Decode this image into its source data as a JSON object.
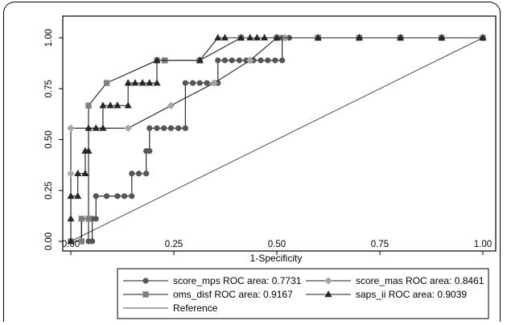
{
  "chart_data": {
    "type": "line",
    "xlabel": "1-Specificity",
    "ylabel": "",
    "xlim": [
      0,
      1
    ],
    "ylim": [
      0,
      1
    ],
    "xticks": [
      "0.00",
      "0.25",
      "0.50",
      "0.75",
      "1.00"
    ],
    "yticks": [
      "0.00",
      "0.25",
      "0.50",
      "0.75",
      "1.00"
    ],
    "grid": "none",
    "legend_position": "bottom",
    "series": [
      {
        "name": "score_mps ROC area: 0.7731",
        "color": "#555555",
        "marker": "circle",
        "points": [
          [
            0,
            0
          ],
          [
            0.026,
            0
          ],
          [
            0.026,
            0.111
          ],
          [
            0.043,
            0.111
          ],
          [
            0.043,
            0
          ],
          [
            0.052,
            0
          ],
          [
            0.052,
            0.111
          ],
          [
            0.061,
            0.111
          ],
          [
            0.061,
            0.222
          ],
          [
            0.087,
            0.222
          ],
          [
            0.113,
            0.222
          ],
          [
            0.13,
            0.222
          ],
          [
            0.148,
            0.222
          ],
          [
            0.148,
            0.333
          ],
          [
            0.165,
            0.333
          ],
          [
            0.183,
            0.333
          ],
          [
            0.183,
            0.444
          ],
          [
            0.191,
            0.444
          ],
          [
            0.191,
            0.556
          ],
          [
            0.209,
            0.556
          ],
          [
            0.226,
            0.556
          ],
          [
            0.243,
            0.556
          ],
          [
            0.261,
            0.556
          ],
          [
            0.278,
            0.556
          ],
          [
            0.278,
            0.778
          ],
          [
            0.296,
            0.778
          ],
          [
            0.313,
            0.778
          ],
          [
            0.33,
            0.778
          ],
          [
            0.348,
            0.778
          ],
          [
            0.357,
            0.778
          ],
          [
            0.357,
            0.889
          ],
          [
            0.374,
            0.889
          ],
          [
            0.391,
            0.889
          ],
          [
            0.409,
            0.889
          ],
          [
            0.426,
            0.889
          ],
          [
            0.443,
            0.889
          ],
          [
            0.461,
            0.889
          ],
          [
            0.478,
            0.889
          ],
          [
            0.496,
            0.889
          ],
          [
            0.513,
            0.889
          ],
          [
            0.513,
            1
          ],
          [
            0.53,
            1
          ],
          [
            0.6,
            1
          ],
          [
            0.7,
            1
          ],
          [
            0.8,
            1
          ],
          [
            0.9,
            1
          ],
          [
            1,
            1
          ]
        ]
      },
      {
        "name": "score_mas ROC area: 0.8461",
        "color": "#a6a6a6",
        "marker": "diamond",
        "points": [
          [
            0,
            0
          ],
          [
            0,
            0.333
          ],
          [
            0,
            0.556
          ],
          [
            0.139,
            0.556
          ],
          [
            0.243,
            0.667
          ],
          [
            0.348,
            0.778
          ],
          [
            0.435,
            0.889
          ],
          [
            0.5,
            1
          ],
          [
            0.52,
            1
          ],
          [
            0.6,
            1
          ],
          [
            0.7,
            1
          ],
          [
            0.8,
            1
          ],
          [
            0.9,
            1
          ],
          [
            1,
            1
          ]
        ]
      },
      {
        "name": "oms_disf ROC area: 0.9167",
        "color": "#7f7f7f",
        "marker": "square",
        "points": [
          [
            0,
            0
          ],
          [
            0.026,
            0
          ],
          [
            0.026,
            0.111
          ],
          [
            0.043,
            0.111
          ],
          [
            0.043,
            0.667
          ],
          [
            0.087,
            0.778
          ],
          [
            0.209,
            0.889
          ],
          [
            0.228,
            0.889
          ],
          [
            0.313,
            0.889
          ],
          [
            0.413,
            1
          ],
          [
            0.5,
            1
          ],
          [
            0.6,
            1
          ],
          [
            0.7,
            1
          ],
          [
            0.8,
            1
          ],
          [
            0.9,
            1
          ],
          [
            1,
            1
          ]
        ]
      },
      {
        "name": "saps_ii ROC area: 0.9039",
        "color": "#262626",
        "marker": "triangle",
        "points": [
          [
            0,
            0
          ],
          [
            0,
            0.111
          ],
          [
            0,
            0.222
          ],
          [
            0.017,
            0.222
          ],
          [
            0.017,
            0.333
          ],
          [
            0.035,
            0.333
          ],
          [
            0.035,
            0.444
          ],
          [
            0.043,
            0.444
          ],
          [
            0.043,
            0.556
          ],
          [
            0.061,
            0.556
          ],
          [
            0.078,
            0.556
          ],
          [
            0.078,
            0.667
          ],
          [
            0.096,
            0.667
          ],
          [
            0.113,
            0.667
          ],
          [
            0.113,
            0.667
          ],
          [
            0.139,
            0.667
          ],
          [
            0.139,
            0.778
          ],
          [
            0.156,
            0.778
          ],
          [
            0.174,
            0.778
          ],
          [
            0.191,
            0.778
          ],
          [
            0.209,
            0.778
          ],
          [
            0.209,
            0.889
          ],
          [
            0.313,
            0.889
          ],
          [
            0.357,
            1
          ],
          [
            0.374,
            1
          ],
          [
            0.413,
            1
          ],
          [
            0.435,
            1
          ],
          [
            0.452,
            1
          ],
          [
            0.47,
            1
          ],
          [
            0.5,
            1
          ],
          [
            0.6,
            1
          ],
          [
            0.7,
            1
          ],
          [
            0.8,
            1
          ],
          [
            0.9,
            1
          ],
          [
            1,
            1
          ]
        ]
      },
      {
        "name": "Reference",
        "color": "#4d4d4d",
        "marker": "none",
        "points": [
          [
            0,
            0
          ],
          [
            1,
            1
          ]
        ]
      }
    ]
  }
}
